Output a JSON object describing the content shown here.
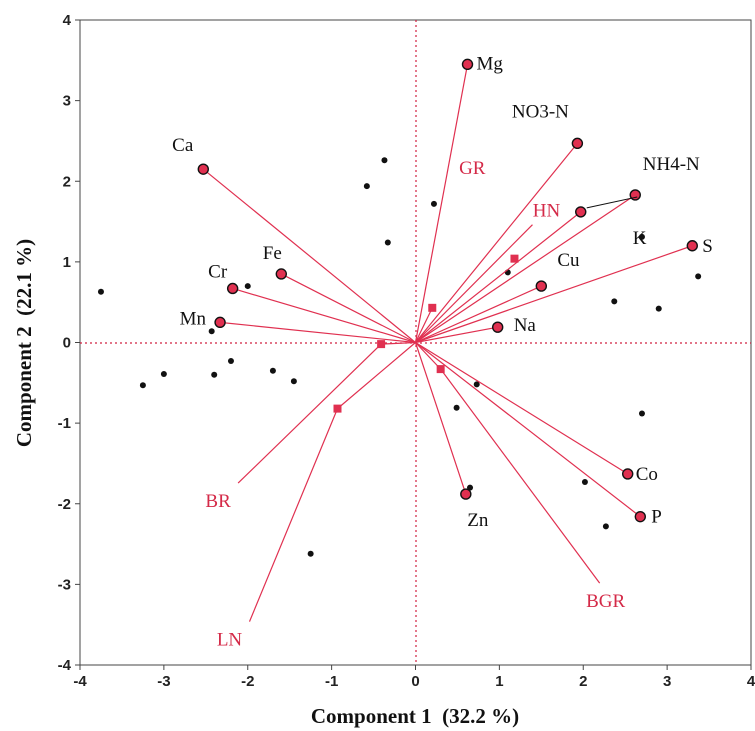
{
  "chart_data": {
    "type": "scatter",
    "subtype": "pca-biplot",
    "xlabel": "Component 1  (32.2 %)",
    "ylabel": "Component 2  (22.1 %)",
    "xlim": [
      -4,
      4
    ],
    "ylim": [
      -4,
      4
    ],
    "x_ticks": [
      -4,
      -3,
      -2,
      -1,
      0,
      1,
      2,
      3,
      4
    ],
    "y_ticks": [
      -4,
      -3,
      -2,
      -1,
      0,
      1,
      2,
      3,
      4
    ],
    "colors": {
      "vector": "#e03050",
      "label_red": "#d42a48",
      "point": "#111111",
      "axis": "#333333"
    },
    "black_vectors": [
      {
        "label": "Mg",
        "x": 0.62,
        "y": 3.45
      },
      {
        "label": "NO3-N",
        "x": 1.93,
        "y": 2.47
      },
      {
        "label": "NH4-N",
        "x": 2.62,
        "y": 1.83
      },
      {
        "label": "K",
        "x": 1.97,
        "y": 1.62
      },
      {
        "label": "S",
        "x": 3.3,
        "y": 1.2
      },
      {
        "label": "Cu",
        "x": 1.5,
        "y": 0.7
      },
      {
        "label": "Na",
        "x": 0.98,
        "y": 0.19
      },
      {
        "label": "Ca",
        "x": -2.53,
        "y": 2.15
      },
      {
        "label": "Fe",
        "x": -1.6,
        "y": 0.85
      },
      {
        "label": "Cr",
        "x": -2.18,
        "y": 0.67
      },
      {
        "label": "Mn",
        "x": -2.33,
        "y": 0.25
      },
      {
        "label": "Co",
        "x": 2.53,
        "y": -1.63
      },
      {
        "label": "P",
        "x": 2.68,
        "y": -2.16
      },
      {
        "label": "Zn",
        "x": 0.6,
        "y": -1.88
      }
    ],
    "red_vectors": [
      {
        "label": "HN",
        "x": 1.18,
        "y": 1.04
      },
      {
        "label": "GR",
        "x": 0.2,
        "y": 0.43
      },
      {
        "label": "BR",
        "x": -0.41,
        "y": -0.02
      },
      {
        "label": "LN",
        "x": -0.93,
        "y": -0.82
      },
      {
        "label": "BGR",
        "x": 0.3,
        "y": -0.33
      }
    ],
    "observations": [
      {
        "x": -3.75,
        "y": 0.63
      },
      {
        "x": -3.25,
        "y": -0.53
      },
      {
        "x": -3.0,
        "y": -0.39
      },
      {
        "x": -2.43,
        "y": 0.14
      },
      {
        "x": -2.4,
        "y": -0.4
      },
      {
        "x": -2.2,
        "y": -0.23
      },
      {
        "x": -2.0,
        "y": 0.7
      },
      {
        "x": -1.7,
        "y": -0.35
      },
      {
        "x": -1.45,
        "y": -0.48
      },
      {
        "x": -1.25,
        "y": -2.62
      },
      {
        "x": -0.58,
        "y": 1.94
      },
      {
        "x": -0.37,
        "y": 2.26
      },
      {
        "x": -0.33,
        "y": 1.24
      },
      {
        "x": 0.22,
        "y": 1.72
      },
      {
        "x": 0.49,
        "y": -0.81
      },
      {
        "x": 0.65,
        "y": -1.8
      },
      {
        "x": 0.73,
        "y": -0.52
      },
      {
        "x": 1.1,
        "y": 0.87
      },
      {
        "x": 2.02,
        "y": -1.73
      },
      {
        "x": 2.27,
        "y": -2.28
      },
      {
        "x": 2.37,
        "y": 0.51
      },
      {
        "x": 2.7,
        "y": 1.31
      },
      {
        "x": 2.7,
        "y": -0.88
      },
      {
        "x": 2.9,
        "y": 0.42
      },
      {
        "x": 3.37,
        "y": 0.82
      }
    ]
  }
}
